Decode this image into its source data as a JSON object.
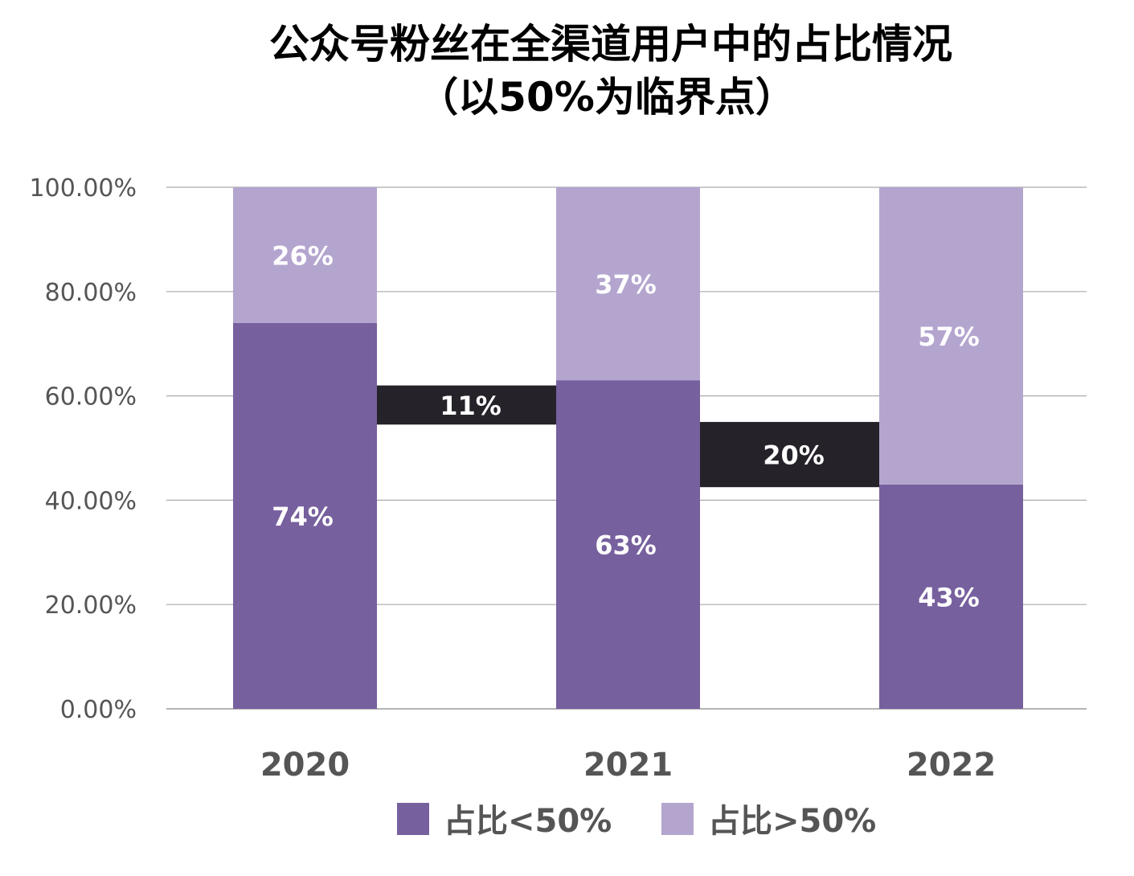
{
  "chart_data": {
    "type": "bar",
    "stacked": true,
    "title": "公众号粉丝在全渠道用户中的占比情况",
    "subtitle": "（以50%为临界点）",
    "categories": [
      "2020",
      "2021",
      "2022"
    ],
    "series": [
      {
        "name": "占比<50%",
        "values": [
          74,
          63,
          43
        ],
        "labels": [
          "74%",
          "63%",
          "43%"
        ],
        "color": "#77609e"
      },
      {
        "name": "占比>50%",
        "values": [
          26,
          37,
          57
        ],
        "labels": [
          "26%",
          "37%",
          "57%"
        ],
        "color": "#b4a5cf"
      }
    ],
    "annotations": [
      {
        "label": "11%",
        "between": [
          "2020",
          "2021"
        ],
        "y_range": [
          54.5,
          62
        ],
        "color": "#25222a"
      },
      {
        "label": "20%",
        "between": [
          "2021",
          "2022"
        ],
        "y_range": [
          42.5,
          55
        ],
        "color": "#25222a"
      }
    ],
    "ylim": [
      0,
      100
    ],
    "yticks": [
      "0.00%",
      "20.00%",
      "40.00%",
      "60.00%",
      "80.00%",
      "100.00%"
    ],
    "grid": true,
    "legend": "bottom"
  }
}
